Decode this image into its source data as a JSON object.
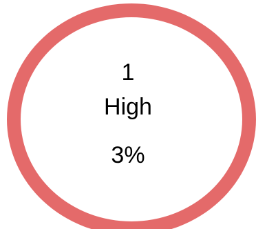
{
  "severity_ring": {
    "count": "1",
    "label": "High",
    "percent": "3%",
    "ring_color": "#e46a6a",
    "fraction": 0.03
  }
}
